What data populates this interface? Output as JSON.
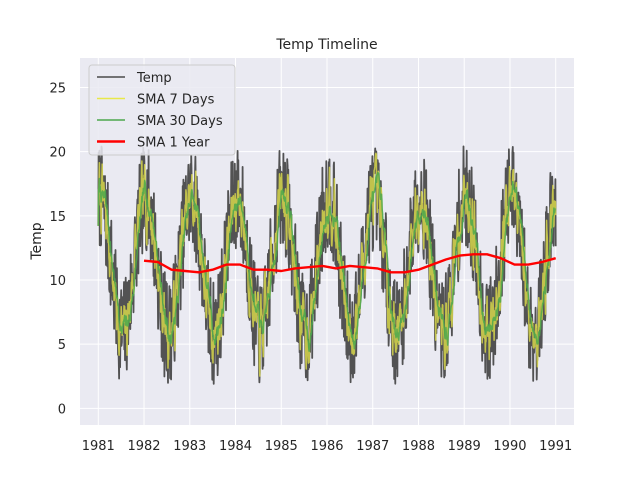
{
  "chart_data": {
    "type": "line",
    "title": "Temp Timeline",
    "xlabel": "",
    "ylabel": "Temp",
    "xlim": [
      1980.6,
      1991.4
    ],
    "ylim": [
      -1.3,
      27.3
    ],
    "x_ticks": [
      "1981",
      "1982",
      "1983",
      "1984",
      "1985",
      "1986",
      "1987",
      "1988",
      "1989",
      "1990",
      "1991"
    ],
    "y_ticks": [
      0,
      5,
      10,
      15,
      20,
      25
    ],
    "grid": true,
    "legend_placement": "top-left",
    "x_start": 1981.0,
    "x_end": 1991.0,
    "series": [
      {
        "name": "Temp",
        "color": "#4a4a4a",
        "kind": "daily",
        "mean": 11.2,
        "amplitude": 4.5,
        "noise": 3.8
      },
      {
        "name": "SMA 7 Days",
        "color": "#e8e84a",
        "kind": "sma7",
        "mean": 11.2,
        "amplitude": 4.5,
        "noise": 1.6
      },
      {
        "name": "SMA 30 Days",
        "color": "#4ca84c",
        "kind": "sma30",
        "mean": 11.2,
        "amplitude": 4.4,
        "noise": 0.7
      },
      {
        "name": "SMA 1 Year",
        "color": "#ff0000",
        "kind": "sma365",
        "x": [
          1982.0,
          1982.3,
          1982.6,
          1982.9,
          1983.2,
          1983.5,
          1983.8,
          1984.1,
          1984.4,
          1984.7,
          1985.0,
          1985.3,
          1985.6,
          1985.9,
          1986.2,
          1986.5,
          1986.8,
          1987.1,
          1987.4,
          1987.7,
          1988.0,
          1988.3,
          1988.6,
          1988.9,
          1989.2,
          1989.5,
          1989.8,
          1990.1,
          1990.4,
          1990.7,
          1991.0
        ],
        "values": [
          11.5,
          11.4,
          10.8,
          10.7,
          10.6,
          10.8,
          11.2,
          11.2,
          10.8,
          10.8,
          10.7,
          10.9,
          11.0,
          11.1,
          10.9,
          11.1,
          11.0,
          10.9,
          10.6,
          10.6,
          10.8,
          11.2,
          11.6,
          11.9,
          12.0,
          12.0,
          11.7,
          11.2,
          11.2,
          11.4,
          11.7
        ]
      }
    ]
  }
}
